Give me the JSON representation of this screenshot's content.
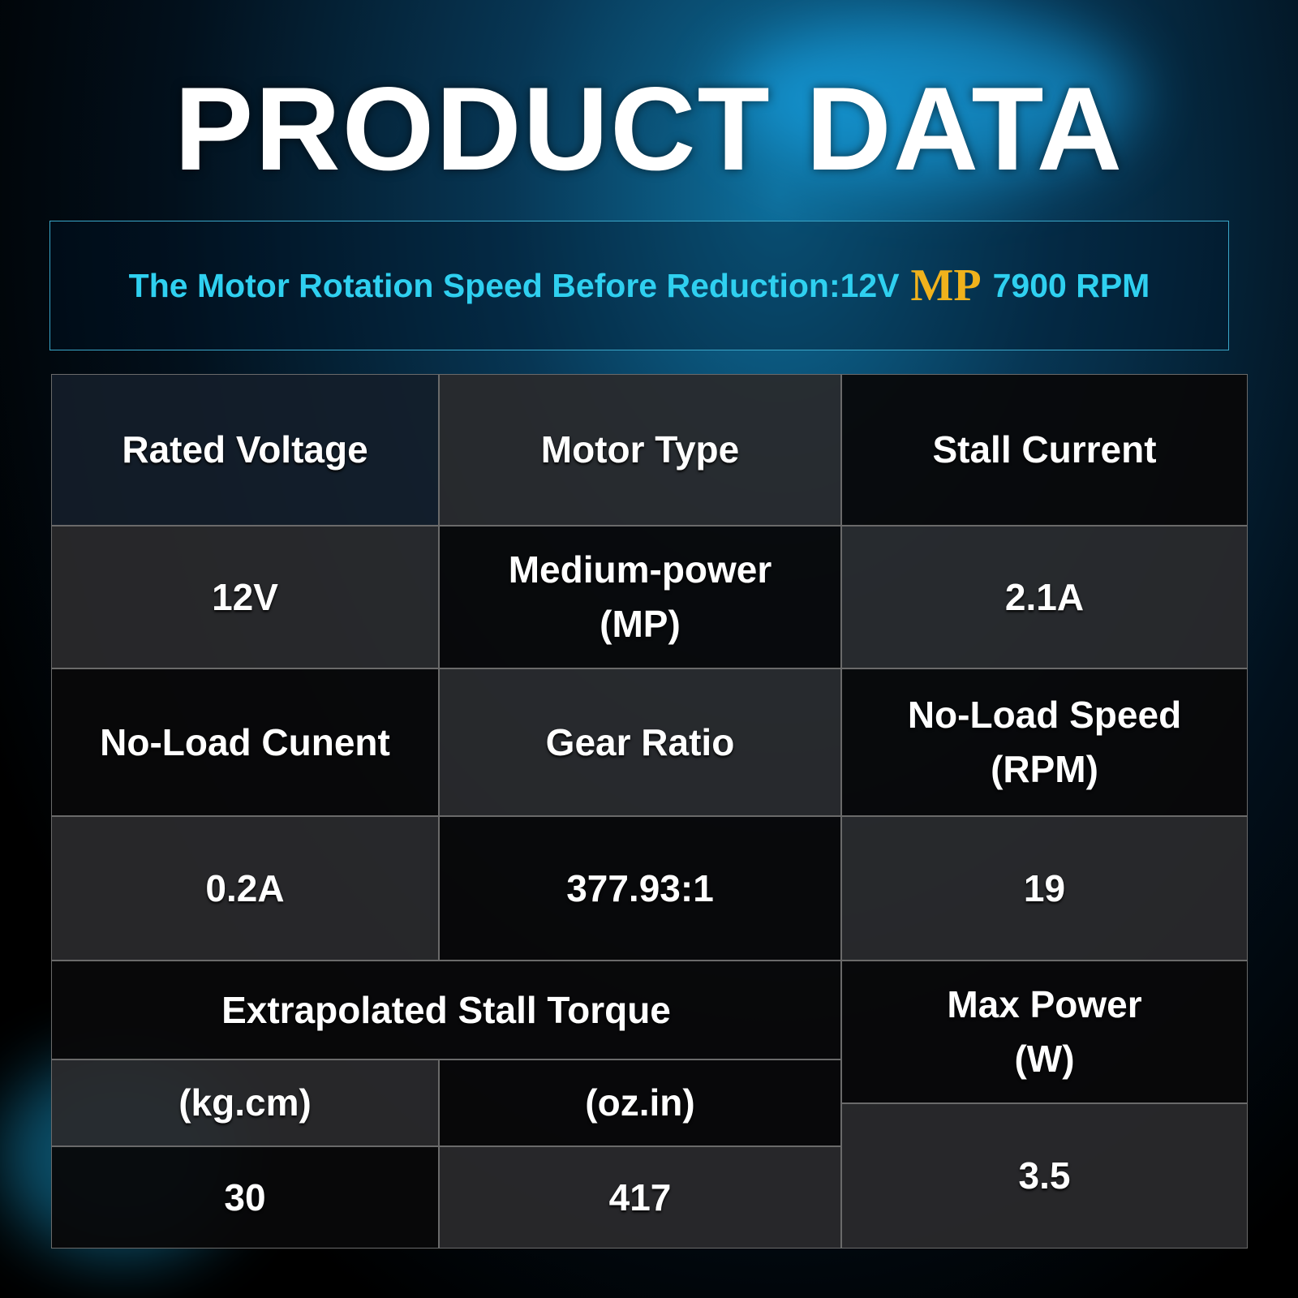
{
  "title": "PRODUCT DATA",
  "banner": {
    "text": "The Motor Rotation Speed Before Reduction:12V",
    "highlight": "MP",
    "speed": "7900 RPM"
  },
  "table": {
    "cells": [
      "Rated Voltage",
      "Motor Type",
      "Stall Current",
      "12V",
      "Medium-power\n(MP)",
      "2.1A",
      "No-Load Cunent",
      "Gear Ratio",
      "No-Load Speed\n(RPM)",
      "0.2A",
      "377.93:1",
      "19",
      "Extrapolated Stall Torque",
      "Max Power\n(W)",
      "(kg.cm)",
      "(oz.in)",
      "30",
      "417",
      "3.5"
    ]
  }
}
